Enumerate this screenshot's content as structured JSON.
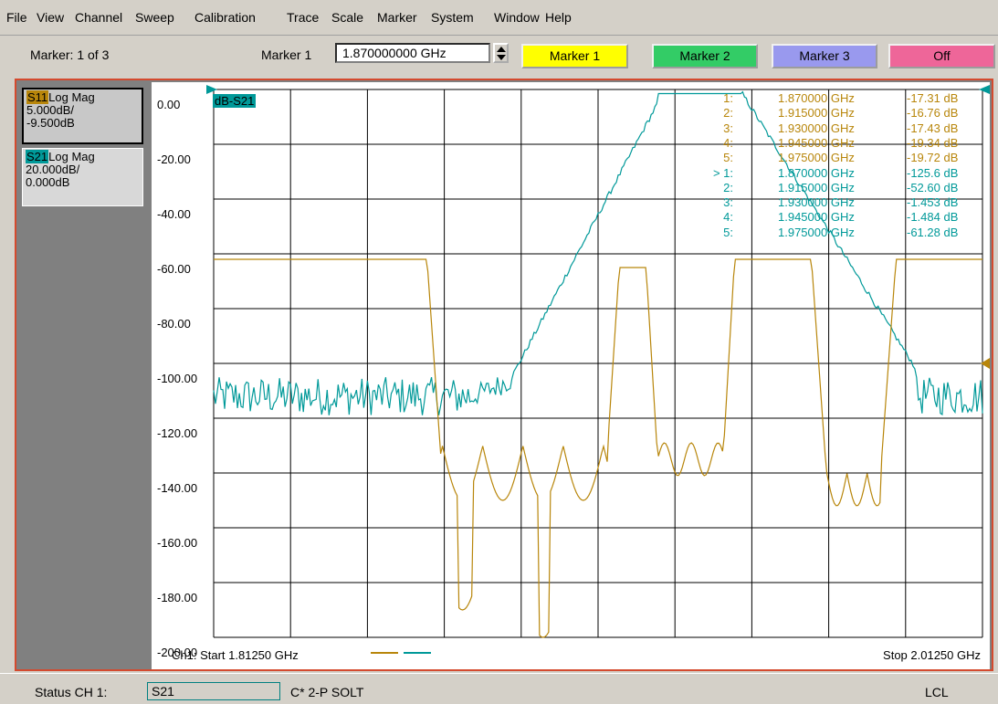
{
  "menu": [
    "File",
    "View",
    "Channel",
    "Sweep",
    "Calibration",
    "Trace",
    "Scale",
    "Marker",
    "System",
    "Window",
    "Help"
  ],
  "toolbar": {
    "marker_count": "Marker: 1 of 3",
    "marker_select_label": "Marker 1",
    "marker_freq": "1.870000000 GHz",
    "buttons": [
      {
        "label": "Marker 1",
        "color": "#ffff00"
      },
      {
        "label": "Marker 2",
        "color": "#33cc66"
      },
      {
        "label": "Marker 3",
        "color": "#9999ee"
      },
      {
        "label": "Off",
        "color": "#ee6699"
      }
    ]
  },
  "traces": [
    {
      "name": "S11",
      "format": "Log Mag",
      "scale": "5.000dB/",
      "ref": "-9.500dB",
      "color": "#b8860b"
    },
    {
      "name": "S21",
      "format": "Log Mag",
      "scale": "20.000dB/",
      "ref": "0.000dB",
      "color": "#009999"
    }
  ],
  "plot": {
    "trace_label": "dB-S21",
    "y_labels": [
      "0.00",
      "-20.00",
      "-40.00",
      "-60.00",
      "-80.00",
      "-100.00",
      "-120.00",
      "-140.00",
      "-160.00",
      "-180.00",
      "-200.00"
    ],
    "start": "Ch1: Start  1.81250 GHz",
    "stop": "Stop  2.01250 GHz",
    "x_range_ghz": [
      1.8125,
      2.0125
    ],
    "y_range_db": [
      -200,
      0
    ]
  },
  "marker_table": [
    {
      "num": "1:",
      "freq": "1.870000 GHz",
      "val": "-17.31 dB",
      "color": "#b8860b"
    },
    {
      "num": "2:",
      "freq": "1.915000 GHz",
      "val": "-16.76 dB",
      "color": "#b8860b"
    },
    {
      "num": "3:",
      "freq": "1.930000 GHz",
      "val": "-17.43 dB",
      "color": "#b8860b"
    },
    {
      "num": "4:",
      "freq": "1.945000 GHz",
      "val": "-19.34 dB",
      "color": "#b8860b"
    },
    {
      "num": "5:",
      "freq": "1.975000 GHz",
      "val": "-19.72 dB",
      "color": "#b8860b"
    },
    {
      "num": "> 1:",
      "freq": "1.870000 GHz",
      "val": "-125.6 dB",
      "color": "#009999"
    },
    {
      "num": "2:",
      "freq": "1.915000 GHz",
      "val": "-52.60 dB",
      "color": "#009999"
    },
    {
      "num": "3:",
      "freq": "1.930000 GHz",
      "val": "-1.453 dB",
      "color": "#009999"
    },
    {
      "num": "4:",
      "freq": "1.945000 GHz",
      "val": "-1.484 dB",
      "color": "#009999"
    },
    {
      "num": "5:",
      "freq": "1.975000 GHz",
      "val": "-61.28 dB",
      "color": "#009999"
    }
  ],
  "status": {
    "label": "Status   CH 1:",
    "meas": "S21",
    "cal": "C* 2-P SOLT",
    "lcl": "LCL"
  },
  "colors": {
    "frame": "#d44a2e",
    "s11": "#b8860b",
    "s21": "#009999"
  }
}
